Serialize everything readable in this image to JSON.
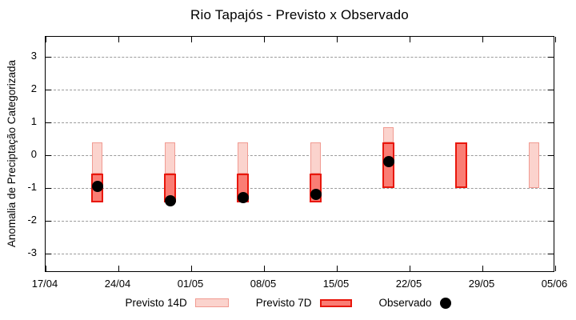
{
  "title": "Rio Tapajós - Previsto x Observado",
  "colors": {
    "previsto_14d_fill": "#fbd3cd",
    "previsto_14d_border": "#f19b92",
    "previsto_7d_fill": "#fa7d74",
    "previsto_7d_border": "#e8170c",
    "observado": "#000000",
    "grid": "#9b9b9b",
    "axis": "#000000"
  },
  "chart_data": {
    "type": "bar",
    "title": "Rio Tapajós - Previsto x Observado",
    "ylabel": "Anomalia de Preciptação Categorizada",
    "xlabel": "",
    "ylim": [
      -3.6,
      3.6
    ],
    "yticks": [
      3,
      2,
      1,
      0,
      -1,
      -2,
      -3
    ],
    "xtick_labels": [
      "17/04",
      "24/04",
      "01/05",
      "08/05",
      "15/05",
      "22/05",
      "29/05",
      "05/06"
    ],
    "xtick_interval_days": 7,
    "grid": "horizontal-dashed",
    "legend_position": "bottom",
    "groups": [
      {
        "date": "22/04",
        "day_offset": 5,
        "previsto_14d": [
          0.4,
          -0.55
        ],
        "previsto_7d": [
          -0.55,
          -1.45
        ],
        "observado": -0.95
      },
      {
        "date": "29/04",
        "day_offset": 12,
        "previsto_14d": [
          0.4,
          -0.55
        ],
        "previsto_7d": [
          -0.55,
          -1.45
        ],
        "observado": -1.4
      },
      {
        "date": "06/05",
        "day_offset": 19,
        "previsto_14d": [
          0.4,
          -0.55
        ],
        "previsto_7d": [
          -0.55,
          -1.45
        ],
        "observado": -1.3
      },
      {
        "date": "13/05",
        "day_offset": 26,
        "previsto_14d": [
          0.4,
          -0.55
        ],
        "previsto_7d": [
          -0.55,
          -1.45
        ],
        "observado": -1.2
      },
      {
        "date": "20/05",
        "day_offset": 33,
        "previsto_14d": [
          0.85,
          0.4
        ],
        "previsto_7d": [
          0.4,
          -1.0
        ],
        "observado": -0.2
      },
      {
        "date": "27/05",
        "day_offset": 40,
        "previsto_14d": null,
        "previsto_7d": [
          0.4,
          -1.0
        ],
        "observado": null
      },
      {
        "date": "03/06",
        "day_offset": 47,
        "previsto_14d": [
          0.4,
          -1.0
        ],
        "previsto_7d": null,
        "observado": null
      }
    ],
    "legend": [
      {
        "label": "Previsto 14D",
        "key": "box-14d"
      },
      {
        "label": "Previsto 7D",
        "key": "box-7d"
      },
      {
        "label": "Observado",
        "key": "dot"
      }
    ]
  }
}
